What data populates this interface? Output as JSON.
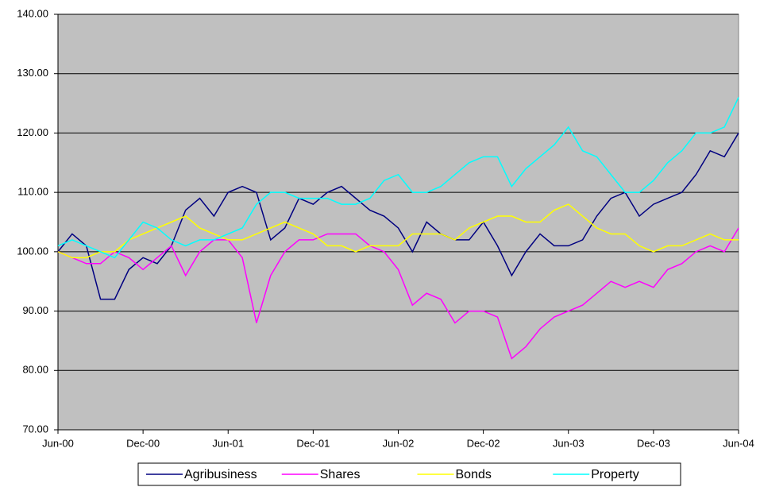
{
  "chart_data": {
    "type": "line",
    "categories": [
      "Jun-00",
      null,
      null,
      null,
      null,
      null,
      "Dec-00",
      null,
      null,
      null,
      null,
      null,
      "Jun-01",
      null,
      null,
      null,
      null,
      null,
      "Dec-01",
      null,
      null,
      null,
      null,
      null,
      "Jun-02",
      null,
      null,
      null,
      null,
      null,
      "Dec-02",
      null,
      null,
      null,
      null,
      null,
      "Jun-03",
      null,
      null,
      null,
      null,
      null,
      "Dec-03",
      null,
      null,
      null,
      null,
      null,
      "Jun-04"
    ],
    "series": [
      {
        "name": "Agribusiness",
        "color": "#000080",
        "values": [
          100,
          103,
          101,
          92,
          92,
          97,
          99,
          98,
          101,
          107,
          109,
          106,
          110,
          111,
          110,
          102,
          104,
          109,
          108,
          110,
          111,
          109,
          107,
          106,
          104,
          100,
          105,
          103,
          102,
          102,
          105,
          101,
          96,
          100,
          103,
          101,
          101,
          102,
          106,
          109,
          110,
          106,
          108,
          109,
          110,
          113,
          117,
          116,
          120
        ]
      },
      {
        "name": "Shares",
        "color": "#ff00ff",
        "values": [
          100,
          99,
          98,
          98,
          100,
          99,
          97,
          99,
          101,
          96,
          100,
          102,
          102,
          99,
          88,
          96,
          100,
          102,
          102,
          103,
          103,
          103,
          101,
          100,
          97,
          91,
          93,
          92,
          88,
          90,
          90,
          89,
          82,
          84,
          87,
          89,
          90,
          91,
          93,
          95,
          94,
          95,
          94,
          97,
          98,
          100,
          101,
          100,
          104
        ]
      },
      {
        "name": "Bonds",
        "color": "#ffff00",
        "values": [
          100,
          99,
          99,
          100,
          100,
          102,
          103,
          104,
          105,
          106,
          104,
          103,
          102,
          102,
          103,
          104,
          105,
          104,
          103,
          101,
          101,
          100,
          101,
          101,
          101,
          103,
          103,
          103,
          102,
          104,
          105,
          106,
          106,
          105,
          105,
          107,
          108,
          106,
          104,
          103,
          103,
          101,
          100,
          101,
          101,
          102,
          103,
          102,
          102
        ]
      },
      {
        "name": "Property",
        "color": "#00ffff",
        "values": [
          101,
          102,
          101,
          100,
          99,
          102,
          105,
          104,
          102,
          101,
          102,
          102,
          103,
          104,
          108,
          110,
          110,
          109,
          109,
          109,
          108,
          108,
          109,
          112,
          113,
          110,
          110,
          111,
          113,
          115,
          116,
          116,
          111,
          114,
          116,
          118,
          121,
          117,
          116,
          113,
          110,
          110,
          112,
          115,
          117,
          120,
          120,
          121,
          126
        ]
      }
    ],
    "ylim": [
      70,
      140
    ],
    "yticks": [
      {
        "value": 70,
        "label": "70.00"
      },
      {
        "value": 80,
        "label": "80.00"
      },
      {
        "value": 90,
        "label": "90.00"
      },
      {
        "value": 100,
        "label": "100.00"
      },
      {
        "value": 110,
        "label": "110.00"
      },
      {
        "value": 120,
        "label": "120.00"
      },
      {
        "value": 130,
        "label": "130.00"
      },
      {
        "value": 140,
        "label": "140.00"
      }
    ],
    "grid": true,
    "legend": "bottom",
    "background": "#c0c0c0"
  }
}
